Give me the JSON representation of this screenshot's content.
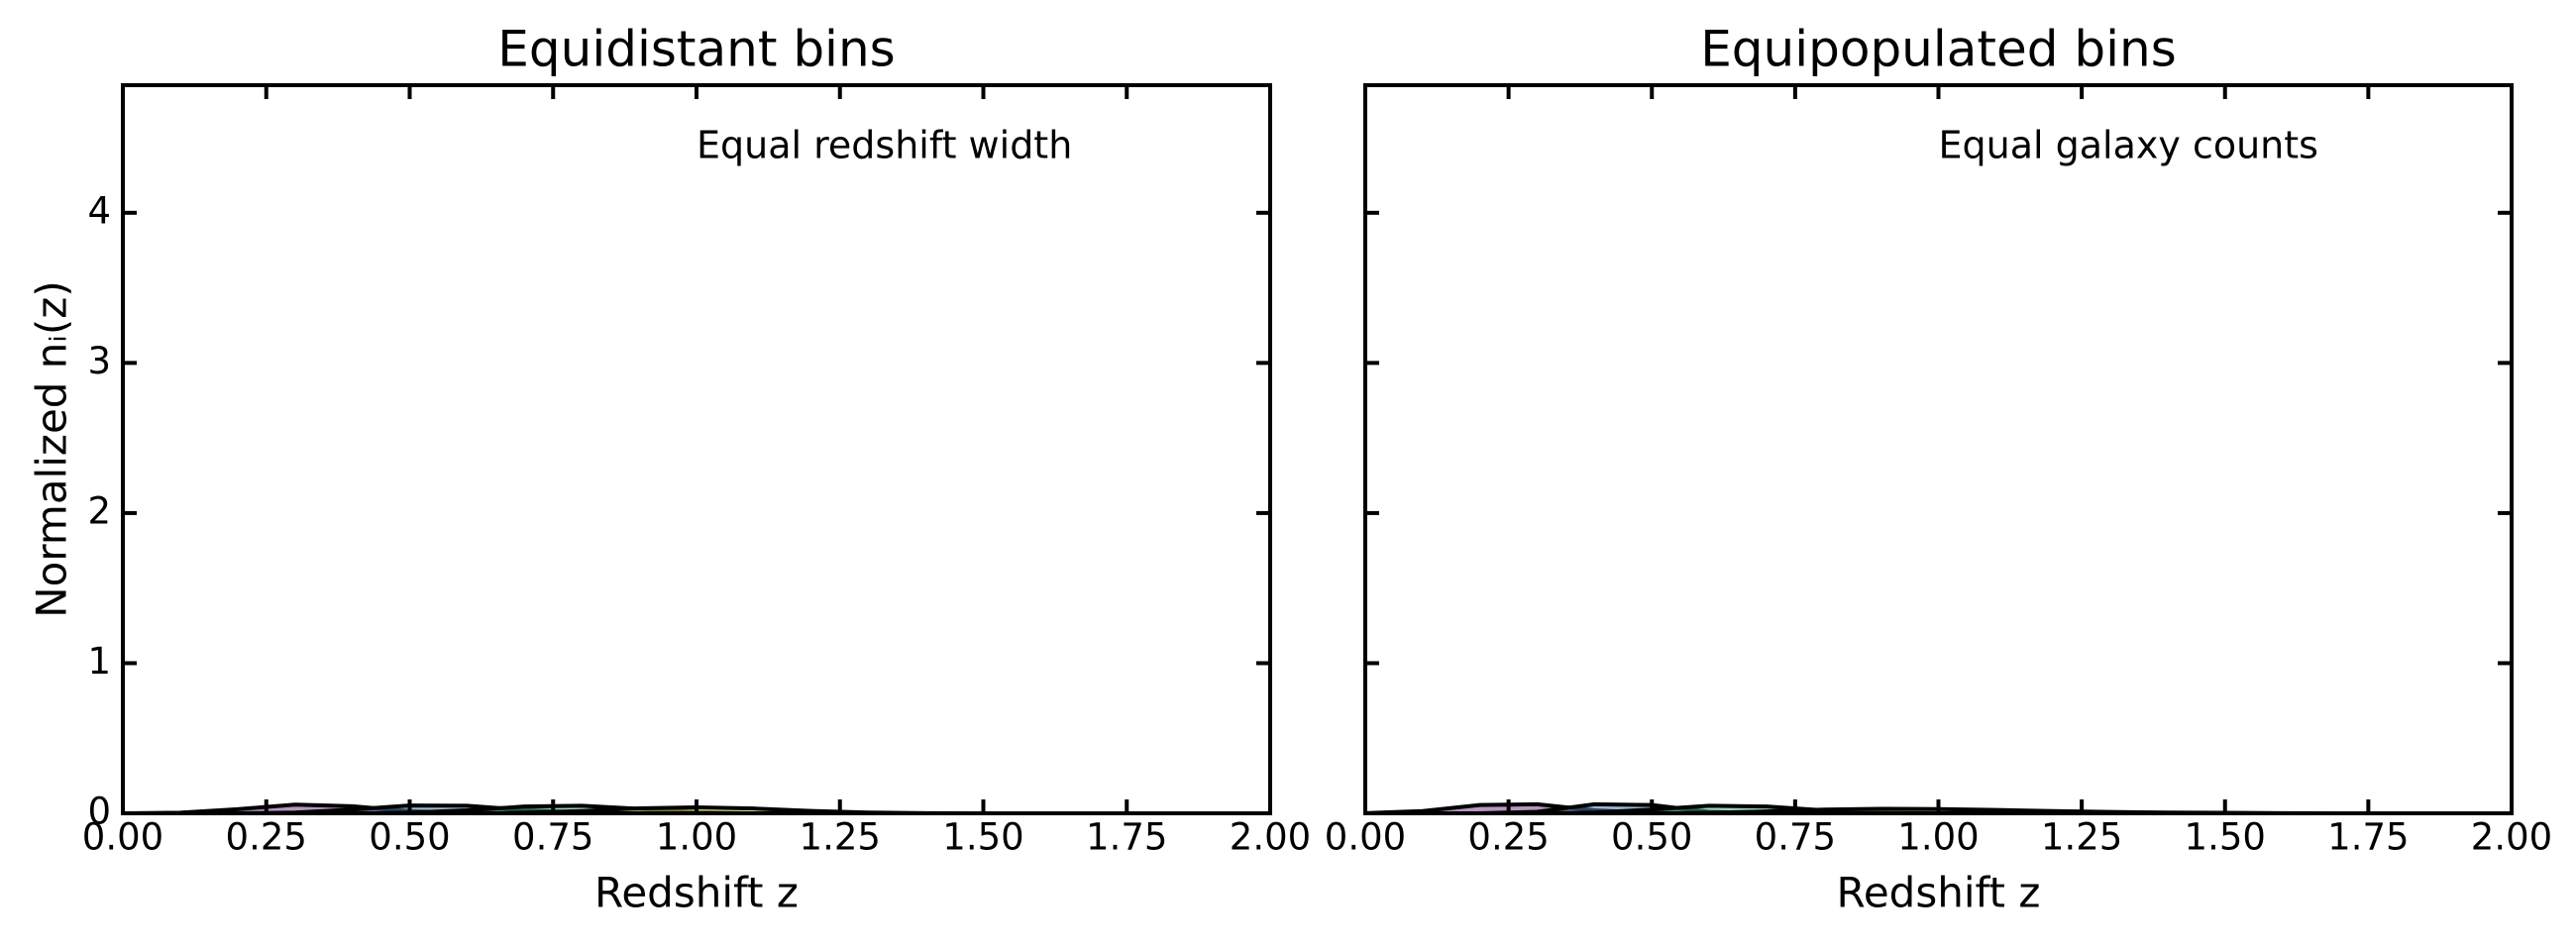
{
  "chart_data": [
    {
      "type": "area",
      "title": "Equidistant bins",
      "annotation": "Equal redshift width",
      "xlabel": "Redshift z",
      "ylabel": "Normalized nᵢ(z)",
      "x": [
        0,
        0.1,
        0.2,
        0.3,
        0.4,
        0.5,
        0.6,
        0.7,
        0.8,
        0.9,
        1.0,
        1.1,
        1.2,
        1.3,
        1.4,
        1.5,
        1.6,
        1.7,
        1.8,
        1.9,
        2.0
      ],
      "series": [
        {
          "color": "#7b3f8c",
          "values": [
            0,
            0.004,
            0.027,
            0.058,
            0.047,
            0.014,
            0.002,
            0,
            0,
            0,
            0,
            0,
            0,
            0,
            0,
            0,
            0,
            0,
            0,
            0,
            0
          ]
        },
        {
          "color": "#4a7fb0",
          "values": [
            0,
            0,
            0,
            0.005,
            0.025,
            0.052,
            0.05,
            0.022,
            0.004,
            0,
            0,
            0,
            0,
            0,
            0,
            0,
            0,
            0,
            0,
            0,
            0
          ]
        },
        {
          "color": "#3fb58f",
          "values": [
            0,
            0,
            0,
            0,
            0,
            0.004,
            0.02,
            0.045,
            0.05,
            0.03,
            0.008,
            0,
            0,
            0,
            0,
            0,
            0,
            0,
            0,
            0,
            0
          ]
        },
        {
          "color": "#e3e34a",
          "values": [
            0,
            0,
            0,
            0,
            0,
            0,
            0,
            0.004,
            0.015,
            0.033,
            0.04,
            0.032,
            0.016,
            0.005,
            0.001,
            0,
            0,
            0,
            0,
            0,
            0
          ]
        }
      ],
      "xlim": [
        0,
        2
      ],
      "ylim": [
        0,
        4.85
      ],
      "xticks": [
        {
          "value": 0,
          "label": "0.00"
        },
        {
          "value": 0.25,
          "label": "0.25"
        },
        {
          "value": 0.5,
          "label": "0.50"
        },
        {
          "value": 0.75,
          "label": "0.75"
        },
        {
          "value": 1,
          "label": "1.00"
        },
        {
          "value": 1.25,
          "label": "1.25"
        },
        {
          "value": 1.5,
          "label": "1.50"
        },
        {
          "value": 1.75,
          "label": "1.75"
        },
        {
          "value": 2,
          "label": "2.00"
        }
      ],
      "yticks": [
        0,
        1,
        2,
        3,
        4
      ]
    },
    {
      "type": "area",
      "title": "Equipopulated bins",
      "annotation": "Equal galaxy counts",
      "xlabel": "Redshift z",
      "x": [
        0,
        0.1,
        0.2,
        0.3,
        0.4,
        0.5,
        0.6,
        0.7,
        0.8,
        0.9,
        1.0,
        1.1,
        1.2,
        1.3,
        1.4,
        1.5,
        1.6,
        1.7,
        1.8,
        1.9,
        2.0
      ],
      "series": [
        {
          "color": "#7b3f8c",
          "values": [
            0.001,
            0.015,
            0.055,
            0.06,
            0.02,
            0.003,
            0,
            0,
            0,
            0,
            0,
            0,
            0,
            0,
            0,
            0,
            0,
            0,
            0,
            0,
            0
          ]
        },
        {
          "color": "#4a7fb0",
          "values": [
            0,
            0,
            0,
            0.01,
            0.06,
            0.055,
            0.01,
            0,
            0,
            0,
            0,
            0,
            0,
            0,
            0,
            0,
            0,
            0,
            0,
            0,
            0
          ]
        },
        {
          "color": "#3fb58f",
          "values": [
            0,
            0,
            0,
            0,
            0.005,
            0.025,
            0.05,
            0.045,
            0.02,
            0.004,
            0,
            0,
            0,
            0,
            0,
            0,
            0,
            0,
            0,
            0,
            0
          ]
        },
        {
          "color": "#e3e34a",
          "values": [
            0,
            0,
            0,
            0,
            0,
            0,
            0.003,
            0.012,
            0.025,
            0.03,
            0.028,
            0.022,
            0.015,
            0.009,
            0.005,
            0.003,
            0.001,
            0,
            0,
            0,
            0
          ]
        }
      ],
      "xlim": [
        0,
        2
      ],
      "ylim": [
        0,
        4.85
      ],
      "xticks": [
        {
          "value": 0,
          "label": "0.00"
        },
        {
          "value": 0.25,
          "label": "0.25"
        },
        {
          "value": 0.5,
          "label": "0.50"
        },
        {
          "value": 0.75,
          "label": "0.75"
        },
        {
          "value": 1,
          "label": "1.00"
        },
        {
          "value": 1.25,
          "label": "1.25"
        },
        {
          "value": 1.5,
          "label": "1.50"
        },
        {
          "value": 1.75,
          "label": "1.75"
        },
        {
          "value": 2,
          "label": "2.00"
        }
      ],
      "yticks": [
        0,
        1,
        2,
        3,
        4
      ]
    }
  ]
}
